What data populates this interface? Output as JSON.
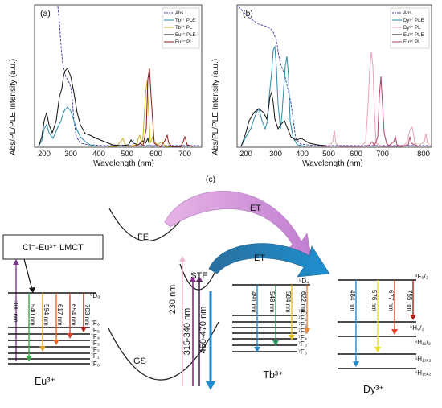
{
  "panel_a": {
    "tag": "(a)",
    "y_axis_title": "Abs/PL/PLE Intensity (a.u.)",
    "x_axis_title": "Wavelength (nm)",
    "x_ticks": [
      "200",
      "300",
      "400",
      "500",
      "600",
      "700"
    ],
    "legend": [
      {
        "label": "Abs",
        "color": "#3b3fa0"
      },
      {
        "label": "Tb³⁺ PLE",
        "color": "#2a8aa8"
      },
      {
        "label": "Tb³⁺ PL",
        "color": "#c9b21e"
      },
      {
        "label": "Eu³⁺ PLE",
        "color": "#111111"
      },
      {
        "label": "Eu³⁺ PL",
        "color": "#8b1a1a"
      }
    ]
  },
  "panel_b": {
    "tag": "(b)",
    "y_axis_title": "Abs/PL/PLE Intensity (a.u.)",
    "x_axis_title": "Wavelength (nm)",
    "x_ticks": [
      "200",
      "300",
      "400",
      "500",
      "600",
      "700",
      "800"
    ],
    "legend": [
      {
        "label": "Abs",
        "color": "#3b3fa0"
      },
      {
        "label": "Dy³⁺ PLE",
        "color": "#2a8aa8"
      },
      {
        "label": "Dy³⁺ PL",
        "color": "#e8a0b8"
      },
      {
        "label": "Eu³⁺ PLE",
        "color": "#111111"
      },
      {
        "label": "Eu³⁺ PL",
        "color": "#b0406a"
      }
    ]
  },
  "panel_c": {
    "tag": "(c)",
    "lmct_label": "Cl⁻-Eu³⁺ LMCT",
    "fe_label": "FE",
    "ste_label": "STE",
    "gs_label": "GS",
    "et_top_label": "ET",
    "et_bottom_label": "ET",
    "excitation_230": "230 nm",
    "excitation_315": "315-340 nm",
    "emission_ste": "450-470 nm",
    "eu": {
      "ion": "Eu³⁺",
      "top_level": "⁵D₀",
      "excitation": "300 nm",
      "emissions": [
        "540 nm",
        "594 nm",
        "617 nm",
        "654 nm",
        "703 nm"
      ],
      "levels": [
        "⁷F₆",
        "⁷F₅",
        "⁷F₄",
        "⁷F₃",
        "⁷F₂",
        "⁷F₁",
        "⁷F₀"
      ]
    },
    "tb": {
      "ion": "Tb³⁺",
      "top_level": "⁵D₄",
      "emissions": [
        "491 nm",
        "548 nm",
        "584 nm",
        "622 nm"
      ],
      "levels": [
        "⁷F₀",
        "⁷F₁",
        "⁷F₂",
        "⁷F₃",
        "⁷F₄",
        "⁷F₅",
        "⁷F₆"
      ]
    },
    "dy": {
      "ion": "Dy³⁺",
      "top_level": "⁴F₉/₂",
      "emissions": [
        "484 nm",
        "576 nm",
        "677 nm",
        "755 nm"
      ],
      "levels": [
        "⁶H₉/₂",
        "⁶H₁₁/₂",
        "⁶H₁₃/₂",
        "⁶H₁₅/₂"
      ]
    }
  }
}
